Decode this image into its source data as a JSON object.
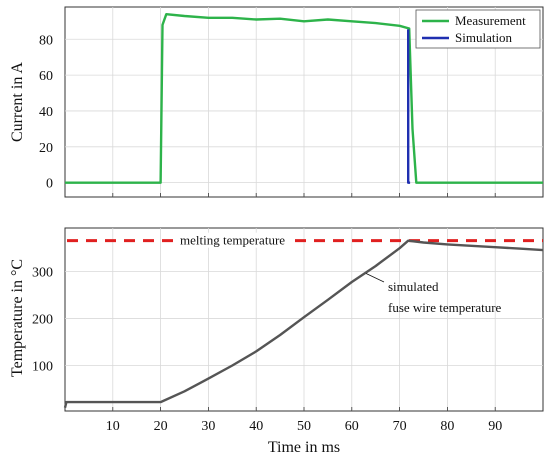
{
  "chart_data": [
    {
      "type": "line",
      "title": "",
      "xlabel": "",
      "ylabel": "Current in A",
      "xlim": [
        0,
        100
      ],
      "ylim": [
        -8,
        98
      ],
      "yticks": [
        0,
        20,
        40,
        60,
        80
      ],
      "xticks": [
        10,
        20,
        30,
        40,
        50,
        60,
        70,
        80,
        90
      ],
      "grid": true,
      "legend": "top-right",
      "series": [
        {
          "name": "Measurement",
          "color": "#2db34a",
          "x": [
            0,
            20,
            20.4,
            21.2,
            25,
            30,
            35,
            40,
            45,
            50,
            55,
            60,
            65,
            70,
            72,
            72.7,
            73.5,
            80,
            90,
            100
          ],
          "y": [
            0,
            0,
            88,
            94,
            93,
            92,
            92,
            91,
            91.5,
            90,
            91,
            90,
            89,
            87.5,
            86,
            30,
            0,
            0,
            0,
            0
          ]
        },
        {
          "name": "Simulation",
          "color": "#1f2fb0",
          "x": [
            71.8,
            71.8,
            72.2
          ],
          "y": [
            85.5,
            0,
            0
          ]
        }
      ]
    },
    {
      "type": "line",
      "title": "",
      "xlabel": "Time in ms",
      "ylabel": "Temperature in °C",
      "xlim": [
        0,
        100
      ],
      "ylim": [
        3,
        393
      ],
      "yticks": [
        100,
        200,
        300
      ],
      "xticks": [
        10,
        20,
        30,
        40,
        50,
        60,
        70,
        80,
        90
      ],
      "grid": true,
      "reference_line": {
        "label": "melting temperature",
        "y": 366,
        "color": "#e02020",
        "style": "dashed"
      },
      "annotation": {
        "lines": [
          "simulated",
          "fuse wire temperature"
        ],
        "points_to": {
          "x": 63,
          "y": 296
        }
      },
      "series": [
        {
          "name": "simulated fuse wire temperature",
          "color": "#555555",
          "x": [
            0,
            0.3,
            0.5,
            20,
            25,
            30,
            35,
            40,
            45,
            50,
            55,
            60,
            65,
            70,
            71.8,
            75,
            80,
            85,
            90,
            95,
            100
          ],
          "y": [
            10,
            22,
            22,
            22,
            45,
            72,
            100,
            130,
            165,
            203,
            240,
            278,
            312,
            350,
            366,
            362,
            358,
            355,
            352,
            349,
            346
          ]
        }
      ]
    }
  ]
}
